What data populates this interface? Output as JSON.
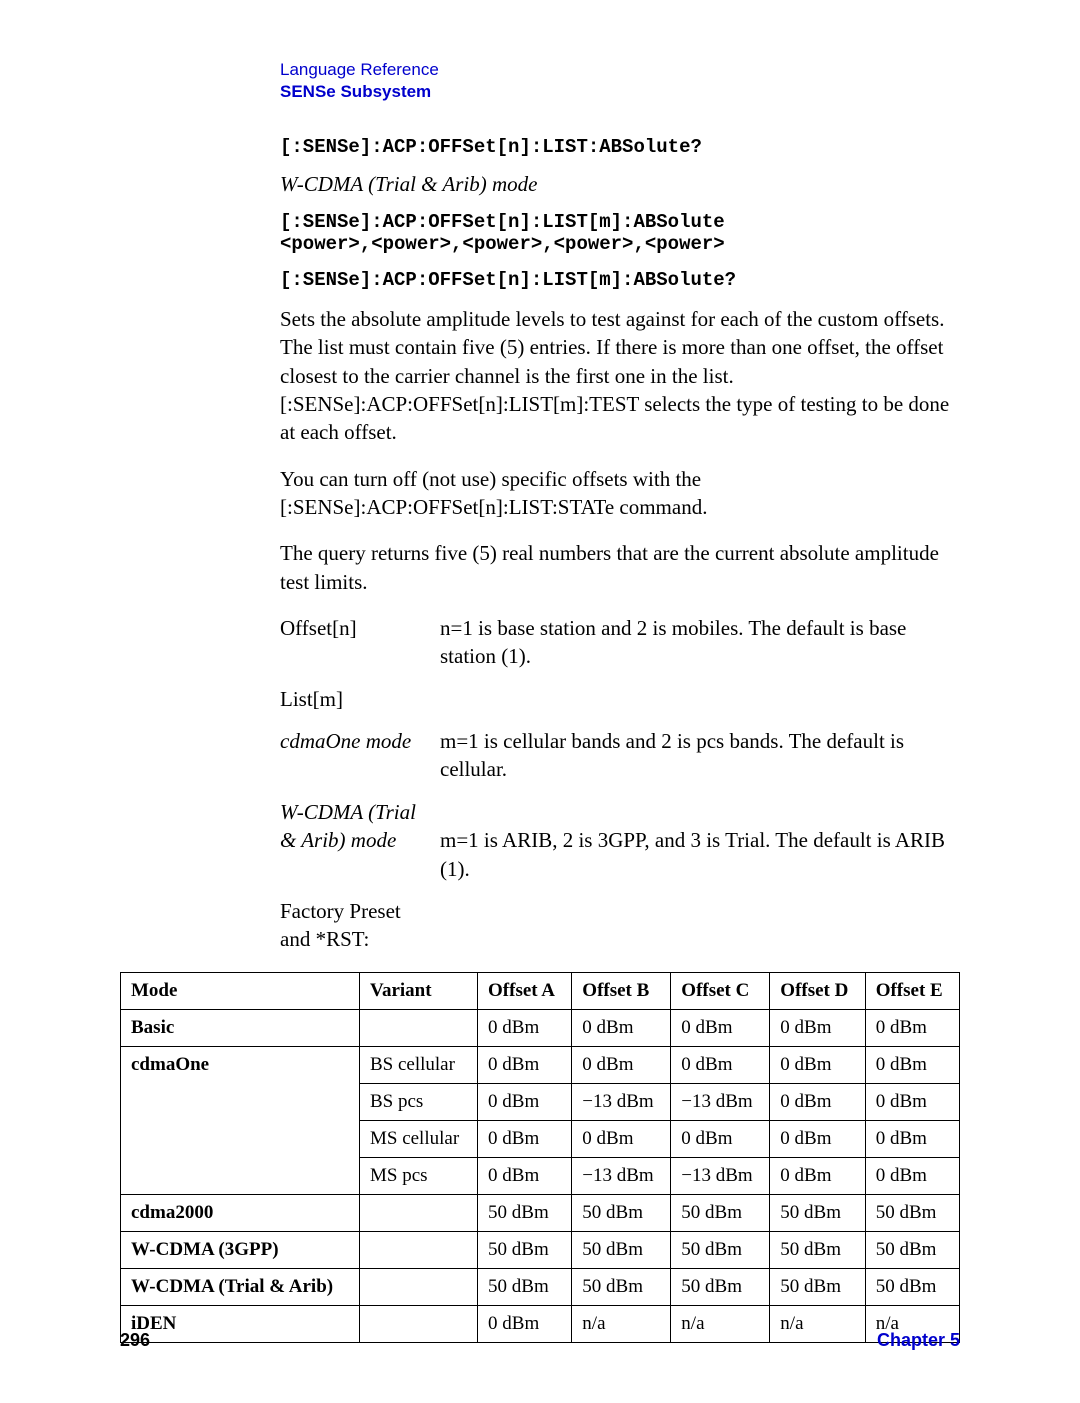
{
  "header": {
    "ref": "Language Reference",
    "sub": "SENSe Subsystem"
  },
  "code1": "[:SENSe]:ACP:OFFSet[n]:LIST:ABSolute?",
  "modeLine1": "W-CDMA (Trial & Arib) mode",
  "code2a": "[:SENSe]:ACP:OFFSet[n]:LIST[m]:ABSolute",
  "code2b": "<power>,<power>,<power>,<power>,<power>",
  "code3": "[:SENSe]:ACP:OFFSet[n]:LIST[m]:ABSolute?",
  "para1": "Sets the absolute amplitude levels to test against for each of the custom offsets. The list must contain five (5) entries. If there is more than one offset, the offset closest to the carrier channel is the first one in the list. [:SENSe]:ACP:OFFSet[n]:LIST[m]:TEST selects the type of testing to be done at each offset.",
  "para2": "You can turn off (not use) specific offsets with the [:SENSe]:ACP:OFFSet[n]:LIST:STATe command.",
  "para3": "The query returns five (5) real numbers that are the current absolute amplitude test limits.",
  "defs": {
    "offsetTerm": "Offset[n]",
    "offsetDesc": "n=1 is base station and 2 is mobiles. The default is base station (1).",
    "listTerm": "List[m]",
    "cdmaTerm": "cdmaOne mode",
    "cdmaDesc": "m=1 is cellular bands and 2 is pcs bands. The default is cellular.",
    "wcdmaTerm1": "W-CDMA (Trial",
    "wcdmaTerm2": "& Arib) mode",
    "wcdmaDesc": "m=1 is ARIB, 2 is 3GPP, and 3 is Trial. The default is ARIB (1).",
    "presetLabel1": "Factory Preset",
    "presetLabel2": "and *RST:"
  },
  "table": {
    "headers": [
      "Mode",
      "Variant",
      "Offset A",
      "Offset B",
      "Offset C",
      "Offset D",
      "Offset E"
    ],
    "rows": [
      {
        "mode": "Basic",
        "variant": "",
        "a": "0 dBm",
        "b": "0 dBm",
        "c": "0 dBm",
        "d": "0 dBm",
        "e": "0 dBm",
        "rowspan": 1
      },
      {
        "mode": "cdmaOne",
        "variant": "BS cellular",
        "a": "0 dBm",
        "b": "0 dBm",
        "c": "0 dBm",
        "d": "0 dBm",
        "e": "0 dBm",
        "rowspan": 4
      },
      {
        "mode": "",
        "variant": "BS pcs",
        "a": "0 dBm",
        "b": "−13 dBm",
        "c": "−13 dBm",
        "d": "0 dBm",
        "e": "0 dBm"
      },
      {
        "mode": "",
        "variant": "MS cellular",
        "a": "0 dBm",
        "b": "0 dBm",
        "c": "0 dBm",
        "d": "0 dBm",
        "e": "0 dBm"
      },
      {
        "mode": "",
        "variant": "MS pcs",
        "a": "0 dBm",
        "b": "−13 dBm",
        "c": "−13 dBm",
        "d": "0 dBm",
        "e": "0 dBm"
      },
      {
        "mode": "cdma2000",
        "variant": "",
        "a": "50 dBm",
        "b": "50 dBm",
        "c": "50 dBm",
        "d": "50 dBm",
        "e": "50 dBm",
        "rowspan": 1
      },
      {
        "mode": "W-CDMA (3GPP)",
        "variant": "",
        "a": "50 dBm",
        "b": "50 dBm",
        "c": "50 dBm",
        "d": "50 dBm",
        "e": "50 dBm",
        "rowspan": 1
      },
      {
        "mode": "W-CDMA (Trial & Arib)",
        "variant": "",
        "a": "50 dBm",
        "b": "50 dBm",
        "c": "50 dBm",
        "d": "50 dBm",
        "e": "50 dBm",
        "rowspan": 1
      },
      {
        "mode": "iDEN",
        "variant": "",
        "a": "0 dBm",
        "b": "n/a",
        "c": "n/a",
        "d": "n/a",
        "e": "n/a",
        "rowspan": 1
      }
    ]
  },
  "footer": {
    "page": "296",
    "chapter": "Chapter 5"
  }
}
